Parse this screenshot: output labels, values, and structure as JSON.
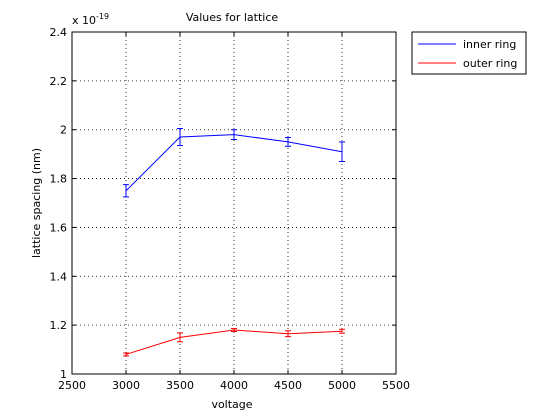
{
  "chart_data": {
    "type": "line",
    "title": "Values for lattice",
    "xlabel": "voltage",
    "ylabel": "lattice spacing (nm)",
    "scale_note": {
      "base": "x 10",
      "exponent": "-19"
    },
    "xlim": [
      2500,
      5500
    ],
    "ylim": [
      1,
      2.4
    ],
    "xticks": [
      2500,
      3000,
      3500,
      4000,
      4500,
      5000,
      5500
    ],
    "yticks": [
      1,
      1.2,
      1.4,
      1.6,
      1.8,
      2,
      2.2,
      2.4
    ],
    "xtick_labels": [
      "2500",
      "3000",
      "3500",
      "4000",
      "4500",
      "5000",
      "5500"
    ],
    "ytick_labels": [
      "1",
      "1.2",
      "1.4",
      "1.6",
      "1.8",
      "2",
      "2.2",
      "2.4"
    ],
    "grid": true,
    "legend_position": "outside-top-right",
    "x": [
      3000,
      3500,
      4000,
      4500,
      5000
    ],
    "series": [
      {
        "name": "inner ring",
        "color": "#0000ff",
        "values": [
          1.75,
          1.97,
          1.98,
          1.95,
          1.91
        ],
        "errors": [
          0.025,
          0.035,
          0.02,
          0.018,
          0.04
        ]
      },
      {
        "name": "outer ring",
        "color": "#ff0000",
        "values": [
          1.08,
          1.15,
          1.18,
          1.165,
          1.175
        ],
        "errors": [
          0.006,
          0.018,
          0.006,
          0.012,
          0.008
        ]
      }
    ]
  }
}
